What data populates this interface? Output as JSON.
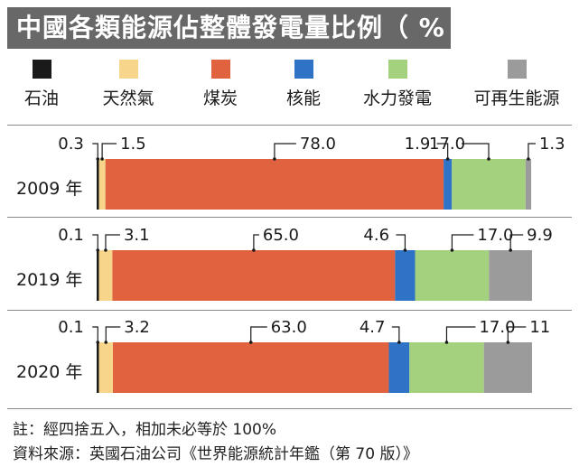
{
  "title": "中國各類能源佔整體發電量比例（ % ）",
  "chart_data": {
    "type": "bar",
    "orientation": "horizontal",
    "stacked": true,
    "unit": "%",
    "title": "中國各類能源佔整體發電量比例（ % ）",
    "legend_position": "top",
    "series": [
      {
        "name": "石油",
        "color": "#1a1a1a"
      },
      {
        "name": "天然氣",
        "color": "#f7d58b"
      },
      {
        "name": "煤炭",
        "color": "#e0623f"
      },
      {
        "name": "核能",
        "color": "#2f73c6"
      },
      {
        "name": "水力發電",
        "color": "#a3d17e"
      },
      {
        "name": "可再生能源",
        "color": "#9b9b9b"
      }
    ],
    "categories": [
      "2009 年",
      "2019 年",
      "2020 年"
    ],
    "rows": [
      {
        "year": "2009 年",
        "values": [
          0.3,
          1.5,
          78.0,
          1.9,
          17.0,
          1.3
        ],
        "labels": [
          "0.3",
          "1.5",
          "78.0",
          "1.9",
          "17.0",
          "1.3"
        ]
      },
      {
        "year": "2019 年",
        "values": [
          0.1,
          3.1,
          65.0,
          4.6,
          17.0,
          9.9
        ],
        "labels": [
          "0.1",
          "3.1",
          "65.0",
          "4.6",
          "17.0",
          "9.9"
        ]
      },
      {
        "year": "2020 年",
        "values": [
          0.1,
          3.2,
          63.0,
          4.7,
          17.0,
          11
        ],
        "labels": [
          "0.1",
          "3.2",
          "63.0",
          "4.7",
          "17.0",
          "11"
        ]
      }
    ]
  },
  "notes": {
    "note": "註：經四捨五入，相加未必等於 100%",
    "source": "資料來源：英國石油公司《世界能源統計年鑑（第 70 版）》"
  }
}
